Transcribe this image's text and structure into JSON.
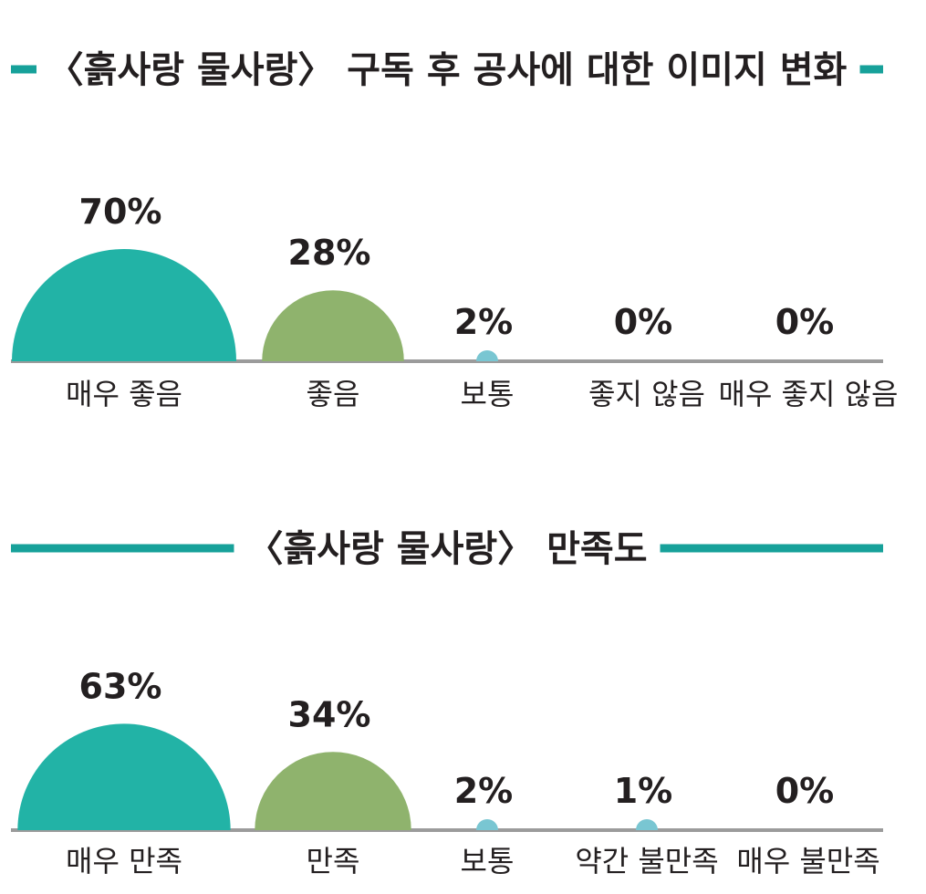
{
  "colors": {
    "teal_dark": "#22b3a6",
    "green": "#8fb36d",
    "light_blue": "#79c6d2",
    "accent_line": "#17a19a",
    "baseline": "#9b9b9b"
  },
  "chart_data": [
    {
      "type": "bar",
      "title": "〈흙사랑 물사랑〉 구독 후 공사에 대한 이미지 변화",
      "categories": [
        "매우 좋음",
        "좋음",
        "보통",
        "좋지 않음",
        "매우 좋지 않음"
      ],
      "values": [
        70,
        28,
        2,
        0,
        0
      ],
      "value_labels": [
        "70%",
        "28%",
        "2%",
        "0%",
        "0%"
      ],
      "unit": "%",
      "ylim": [
        0,
        100
      ],
      "grid": false,
      "legend": "none"
    },
    {
      "type": "bar",
      "title": "〈흙사랑 물사랑〉 만족도",
      "categories": [
        "매우 만족",
        "만족",
        "보통",
        "약간 불만족",
        "매우 불만족"
      ],
      "values": [
        63,
        34,
        2,
        1,
        0
      ],
      "value_labels": [
        "63%",
        "34%",
        "2%",
        "1%",
        "0%"
      ],
      "unit": "%",
      "ylim": [
        0,
        100
      ],
      "grid": false,
      "legend": "none"
    }
  ]
}
